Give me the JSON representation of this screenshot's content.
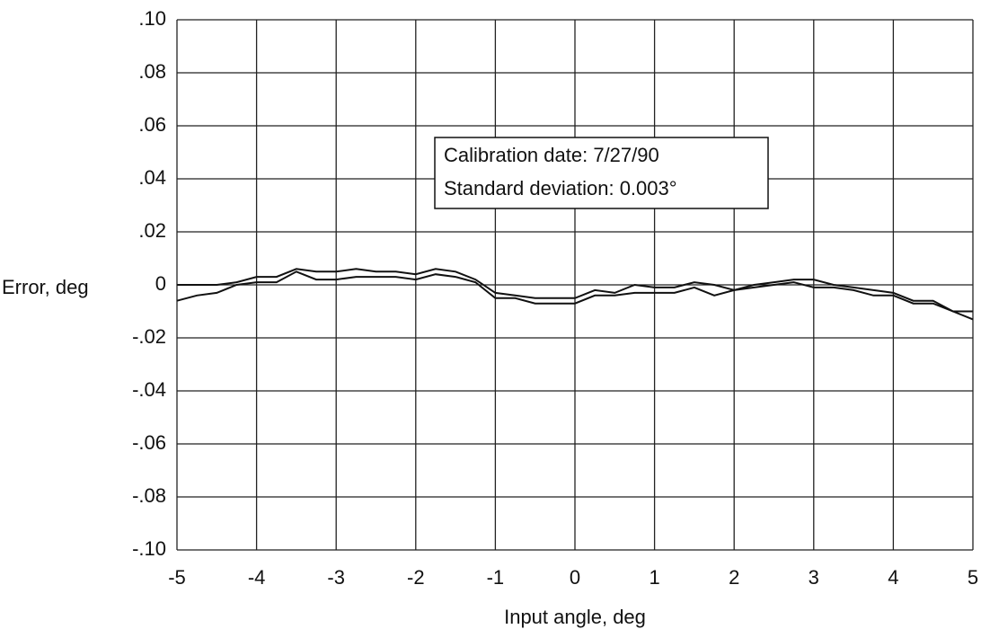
{
  "chart_data": {
    "type": "line",
    "xlabel": "Input angle, deg",
    "ylabel": "Error, deg",
    "annotation": [
      "Calibration date: 7/27/90",
      "Standard deviation: 0.003°"
    ],
    "x": [
      -5,
      -4.75,
      -4.5,
      -4.25,
      -4,
      -3.75,
      -3.5,
      -3.25,
      -3,
      -2.75,
      -2.5,
      -2.25,
      -2,
      -1.75,
      -1.5,
      -1.25,
      -1,
      -0.75,
      -0.5,
      -0.25,
      0,
      0.25,
      0.5,
      0.75,
      1,
      1.25,
      1.5,
      1.75,
      2,
      2.25,
      2.5,
      2.75,
      3,
      3.25,
      3.5,
      3.75,
      4,
      4.25,
      4.5,
      4.75,
      5
    ],
    "series": [
      {
        "color": "#111111",
        "values": [
          0,
          0,
          0,
          0.001,
          0.003,
          0.003,
          0.006,
          0.005,
          0.005,
          0.006,
          0.005,
          0.005,
          0.004,
          0.006,
          0.005,
          0.002,
          -0.003,
          -0.004,
          -0.005,
          -0.005,
          -0.005,
          -0.002,
          -0.003,
          0,
          -0.001,
          -0.001,
          0.001,
          0,
          -0.002,
          0,
          0.001,
          0.002,
          0.002,
          0,
          -0.001,
          -0.002,
          -0.003,
          -0.006,
          -0.006,
          -0.01,
          -0.01
        ]
      },
      {
        "color": "#111111",
        "values": [
          -0.006,
          -0.004,
          -0.003,
          0,
          0.001,
          0.001,
          0.005,
          0.002,
          0.002,
          0.003,
          0.003,
          0.003,
          0.002,
          0.004,
          0.003,
          0.001,
          -0.005,
          -0.005,
          -0.007,
          -0.007,
          -0.007,
          -0.004,
          -0.004,
          -0.003,
          -0.003,
          -0.003,
          -0.001,
          -0.004,
          -0.002,
          -0.001,
          0,
          0.001,
          -0.001,
          -0.001,
          -0.002,
          -0.004,
          -0.004,
          -0.007,
          -0.007,
          -0.01,
          -0.013
        ]
      }
    ],
    "xlim": [
      -5,
      5
    ],
    "xticks": [
      -5,
      -4,
      -3,
      -2,
      -1,
      0,
      1,
      2,
      3,
      4,
      5
    ],
    "ylim": [
      -0.1,
      0.1
    ],
    "yticks": [
      {
        "value": -0.1,
        "label": "-.10"
      },
      {
        "value": -0.08,
        "label": "-.08"
      },
      {
        "value": -0.06,
        "label": "-.06"
      },
      {
        "value": -0.04,
        "label": "-.04"
      },
      {
        "value": -0.02,
        "label": "-.02"
      },
      0,
      {
        "value": 0.02,
        "label": ".02"
      },
      {
        "value": 0.04,
        "label": ".04"
      },
      {
        "value": 0.06,
        "label": ".06"
      },
      {
        "value": 0.08,
        "label": ".08"
      },
      {
        "value": 0.1,
        "label": ".10"
      }
    ],
    "grid": true
  }
}
